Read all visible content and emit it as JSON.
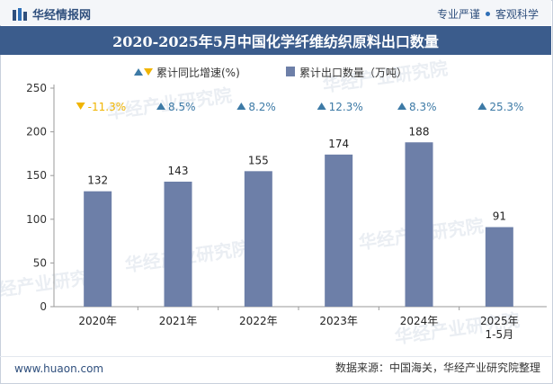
{
  "header": {
    "brand": "华经情报网",
    "tagline_left": "专业严谨",
    "tagline_right": "客观科学"
  },
  "colors": {
    "bar": "#6d7fa8",
    "up_arrow": "#3d7aa6",
    "down_arrow": "#f0b400",
    "title_bg": "#3b5c8c"
  },
  "chart_data": {
    "type": "bar",
    "title": "2020-2025年5月中国化学纤维纺织原料出口数量",
    "categories": [
      "2020年",
      "2021年",
      "2022年",
      "2023年",
      "2024年",
      "2025年\n1-5月"
    ],
    "series": [
      {
        "name": "累计出口数量（万吨）",
        "values": [
          132,
          143,
          155,
          174,
          188,
          91
        ]
      },
      {
        "name": "累计同比增速(%)",
        "values": [
          -11.3,
          8.5,
          8.2,
          12.3,
          8.3,
          25.3
        ]
      }
    ],
    "growth_labels": [
      "-11.3%",
      "8.5%",
      "8.2%",
      "12.3%",
      "8.3%",
      "25.3%"
    ],
    "y_ticks": [
      0,
      50,
      100,
      150,
      200,
      250
    ],
    "ylim": [
      0,
      250
    ],
    "legend": "top",
    "grid": false
  },
  "watermark": "华经产业研究院",
  "footer": {
    "site": "www.huaon.com",
    "source": "数据来源：中国海关，华经产业研究院整理"
  }
}
